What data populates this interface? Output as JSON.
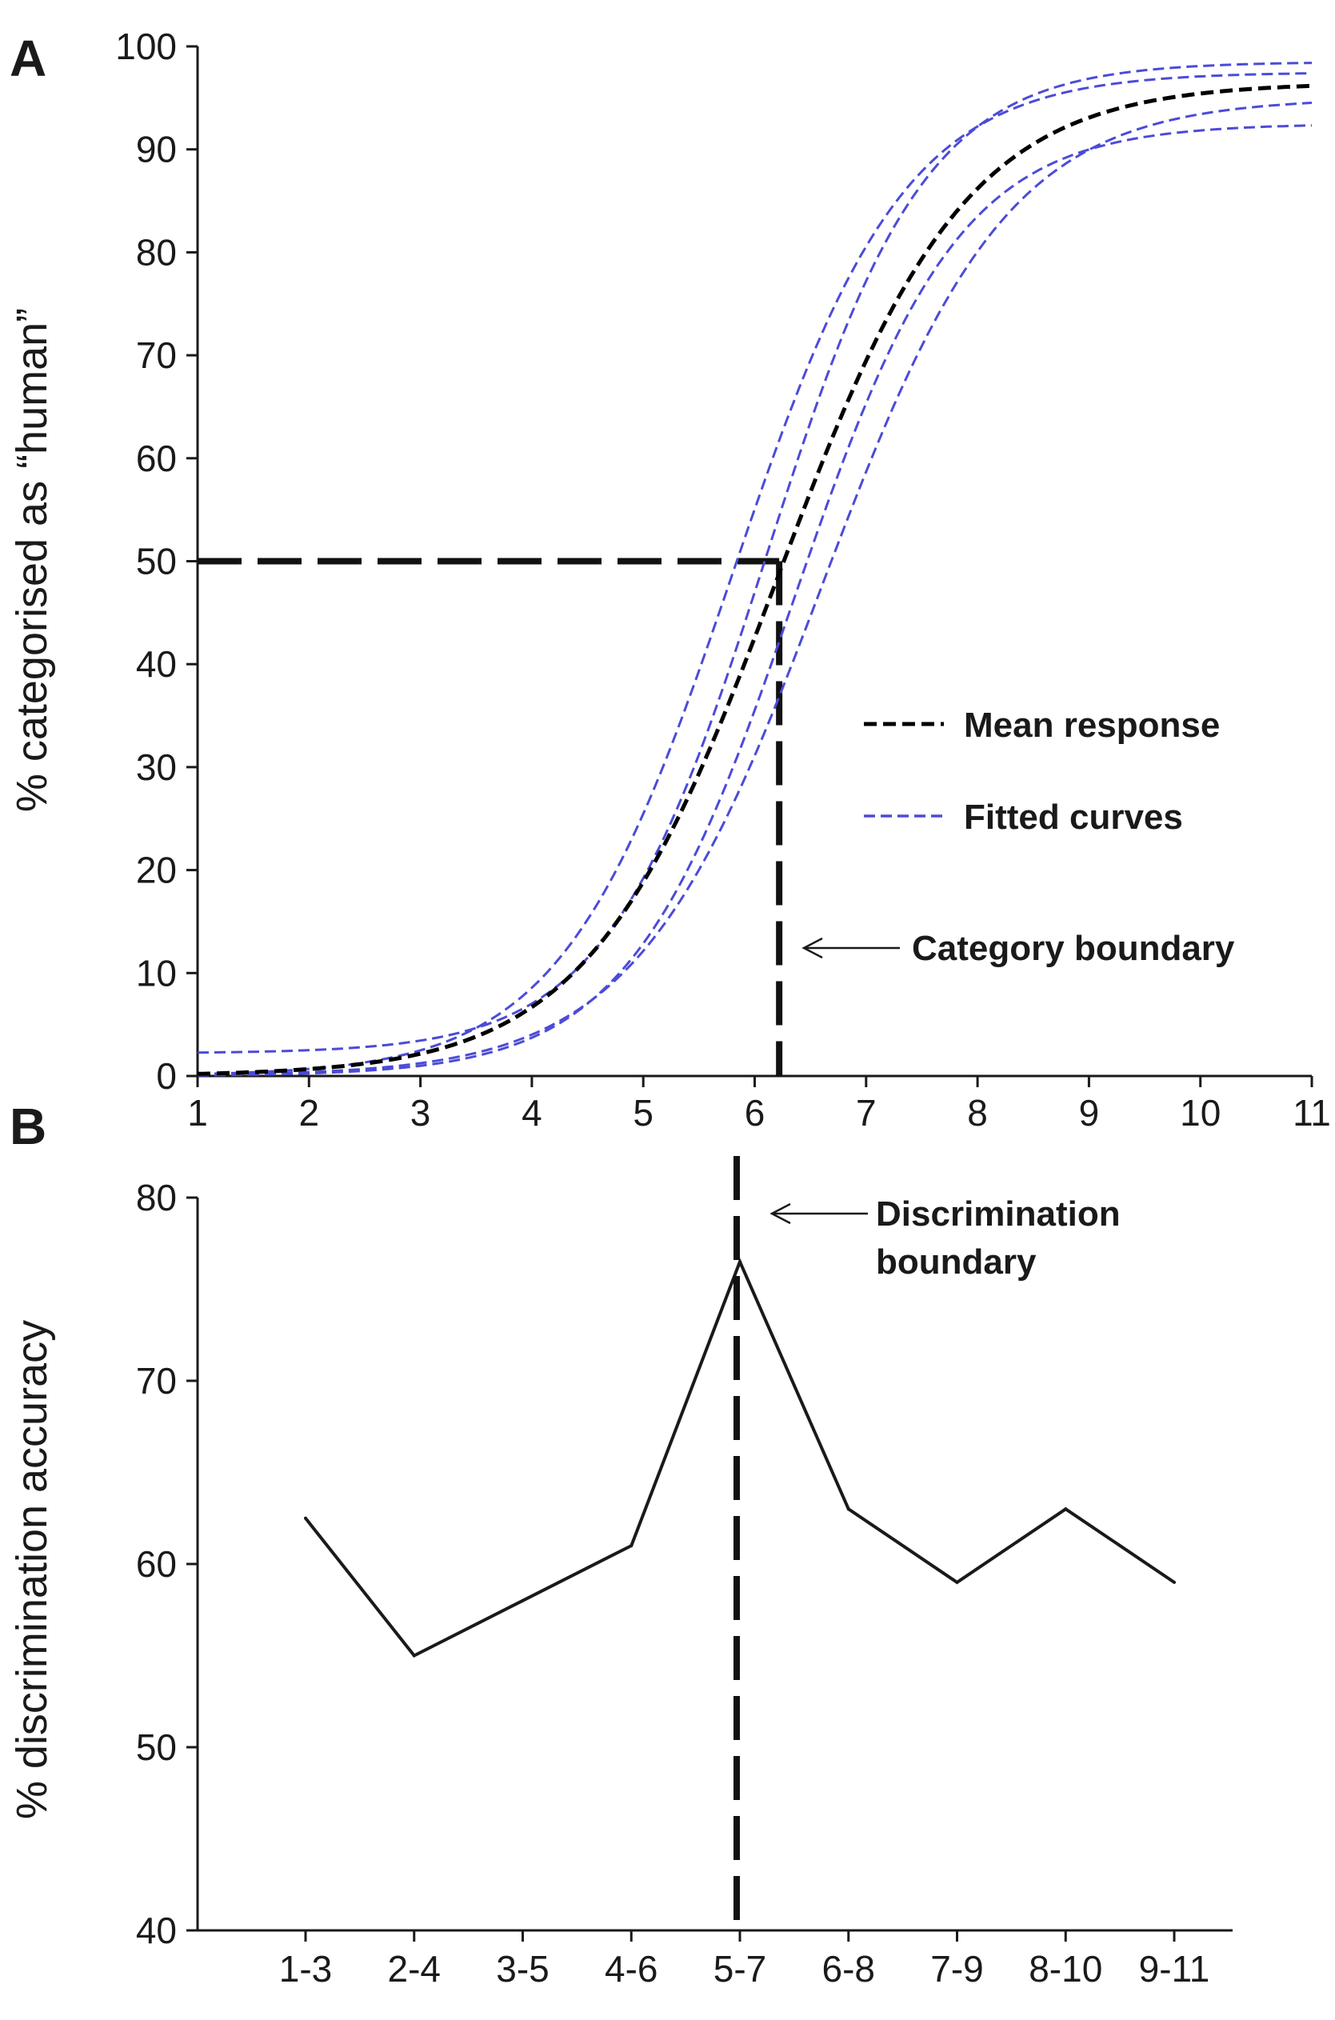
{
  "chart_data": [
    {
      "panel": "A",
      "type": "line",
      "ylabel": "% categorised as “human”",
      "x": [
        1,
        2,
        3,
        4,
        5,
        6,
        7,
        8,
        9,
        10,
        11
      ],
      "xlim": [
        1,
        11
      ],
      "ylim": [
        0,
        100
      ],
      "yticks": [
        0,
        10,
        20,
        30,
        40,
        50,
        60,
        70,
        80,
        90,
        100
      ],
      "series": [
        {
          "name": "Mean response",
          "color": "#000000",
          "style": "dashed",
          "fit": {
            "lower": 0,
            "upper": 96.5,
            "midpoint": 6.2,
            "slope": 1.18
          }
        },
        {
          "name": "Fitted curves",
          "color": "#4b4bd8",
          "style": "dashed",
          "fit": {
            "lower": 0,
            "upper": 97.5,
            "midpoint": 5.8,
            "slope": 1.3
          }
        },
        {
          "name": "Fitted curves",
          "color": "#4b4bd8",
          "style": "dashed",
          "fit": {
            "lower": 2.2,
            "upper": 98.5,
            "midpoint": 6.1,
            "slope": 1.4
          }
        },
        {
          "name": "Fitted curves",
          "color": "#4b4bd8",
          "style": "dashed",
          "fit": {
            "lower": 0,
            "upper": 92.5,
            "midpoint": 6.35,
            "slope": 1.35
          }
        },
        {
          "name": "Fitted curves",
          "color": "#4b4bd8",
          "style": "dashed",
          "fit": {
            "lower": 0,
            "upper": 95,
            "midpoint": 6.6,
            "slope": 1.2
          }
        }
      ],
      "boundary": {
        "x": 6.22,
        "y": 50
      },
      "legend": [
        {
          "label": "Mean response",
          "color": "#000000"
        },
        {
          "label": "Fitted curves",
          "color": "#4b4bd8"
        }
      ],
      "annotation": "Category boundary"
    },
    {
      "panel": "B",
      "type": "line",
      "ylabel": "% discrimination accuracy",
      "categories": [
        "1-3",
        "2-4",
        "3-5",
        "4-6",
        "5-7",
        "6-8",
        "7-9",
        "8-10",
        "9-11"
      ],
      "values": [
        62.5,
        55,
        58,
        61,
        76.5,
        63,
        59,
        63,
        59
      ],
      "ylim": [
        40,
        80
      ],
      "yticks": [
        40,
        50,
        60,
        70,
        80
      ],
      "boundary_category": "5-7",
      "annotation_lines": [
        "Discrimination",
        "boundary"
      ]
    }
  ]
}
